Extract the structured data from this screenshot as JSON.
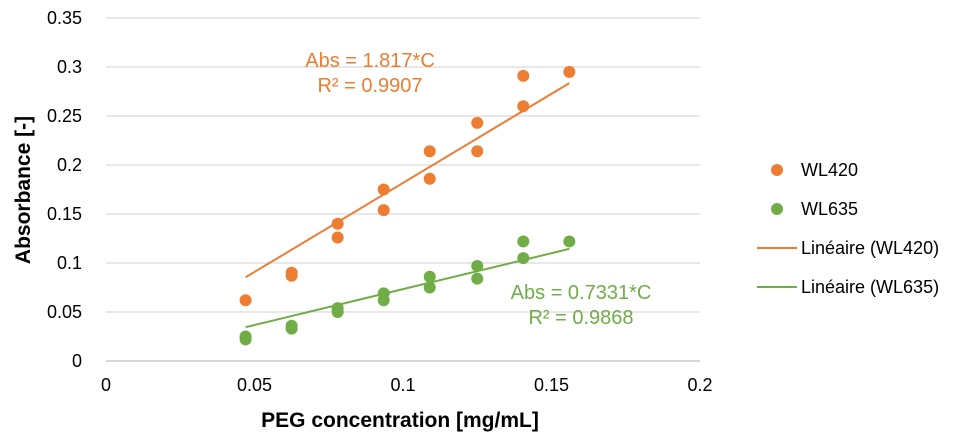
{
  "chart_data": {
    "type": "scatter",
    "title": "",
    "xlabel": "PEG concentration [mg/mL]",
    "ylabel": "Absorbance [-]",
    "xlim": [
      0,
      0.2
    ],
    "ylim": [
      0,
      0.35
    ],
    "x_ticks": [
      "0",
      "0.05",
      "0.1",
      "0.15",
      "0.2"
    ],
    "y_ticks": [
      "0",
      "0.05",
      "0.1",
      "0.15",
      "0.2",
      "0.25",
      "0.3",
      "0.35"
    ],
    "grid": "horizontal",
    "legend_position": "right",
    "series": [
      {
        "name": "WL420",
        "kind": "scatter",
        "color": "#ED7D31",
        "x": [
          0.047,
          0.0625,
          0.0625,
          0.078,
          0.078,
          0.0935,
          0.0935,
          0.109,
          0.109,
          0.125,
          0.125,
          0.1405,
          0.1405,
          0.156
        ],
        "y": [
          0.062,
          0.09,
          0.087,
          0.14,
          0.126,
          0.175,
          0.154,
          0.214,
          0.186,
          0.243,
          0.214,
          0.291,
          0.26,
          0.295
        ]
      },
      {
        "name": "WL635",
        "kind": "scatter",
        "color": "#70AD47",
        "x": [
          0.047,
          0.047,
          0.0625,
          0.0625,
          0.078,
          0.078,
          0.0935,
          0.0935,
          0.109,
          0.109,
          0.125,
          0.125,
          0.1405,
          0.1405,
          0.156
        ],
        "y": [
          0.025,
          0.022,
          0.036,
          0.033,
          0.054,
          0.05,
          0.069,
          0.062,
          0.086,
          0.075,
          0.097,
          0.084,
          0.122,
          0.105,
          0.122
        ]
      },
      {
        "name": "Linéaire (WL420)",
        "kind": "line",
        "color": "#ED7D31",
        "x": [
          0.047,
          0.156
        ],
        "y": [
          0.0854,
          0.2835
        ]
      },
      {
        "name": "Linéaire (WL635)",
        "kind": "line",
        "color": "#70AD47",
        "x": [
          0.047,
          0.156
        ],
        "y": [
          0.0345,
          0.1144
        ]
      }
    ],
    "annotations": [
      {
        "lines": [
          "Abs = 1.817*C",
          "R² = 0.9907"
        ],
        "color": "#ED7D31"
      },
      {
        "lines": [
          "Abs = 0.7331*C",
          "R² = 0.9868"
        ],
        "color": "#70AD47"
      }
    ]
  }
}
